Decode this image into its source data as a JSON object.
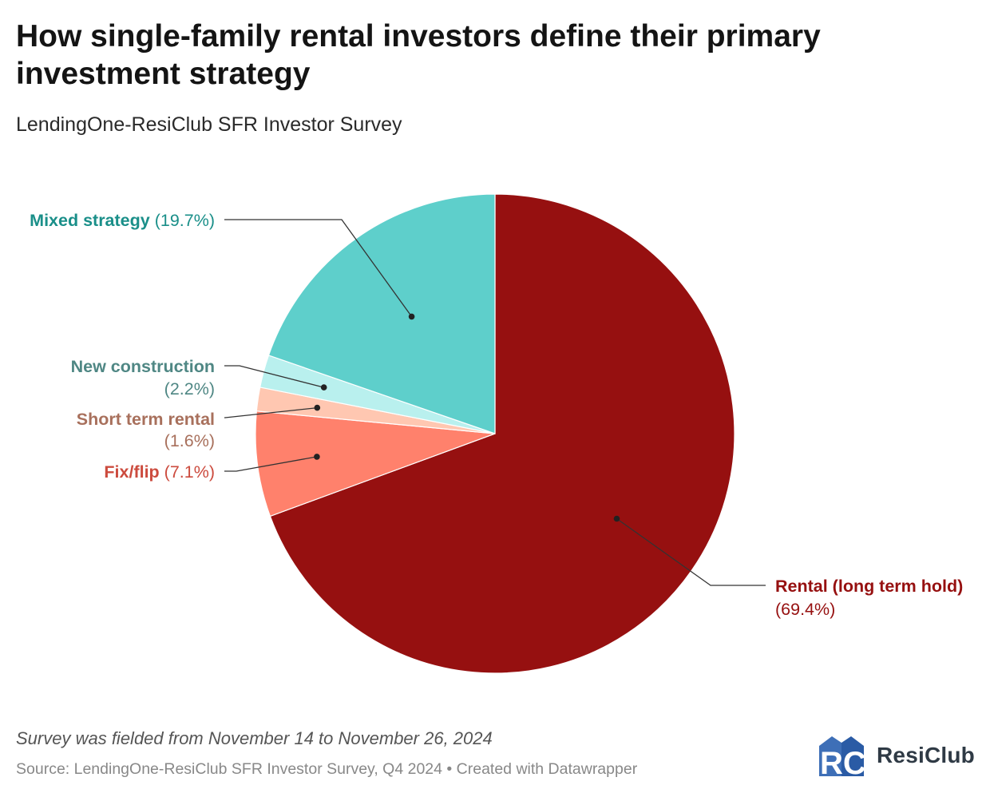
{
  "title": "How single-family rental investors define their primary investment strategy",
  "subtitle": "LendingOne-ResiClub SFR Investor Survey",
  "note": "Survey was fielded from November 14 to November 26, 2024",
  "source": "Source: LendingOne-ResiClub SFR Investor Survey, Q4 2024 • Created with Datawrapper",
  "logo": {
    "text": "ResiClub",
    "mark": "RC"
  },
  "chart_data": {
    "type": "pie",
    "title": "How single-family rental investors define their primary investment strategy",
    "subtitle": "LendingOne-ResiClub SFR Investor Survey",
    "unit": "%",
    "slices": [
      {
        "label": "Rental (long term hold)",
        "value": 69.4,
        "value_label": "(69.4%)",
        "color": "#961010",
        "label_color": "#961010"
      },
      {
        "label": "Fix/flip",
        "value": 7.1,
        "value_label": "(7.1%)",
        "color": "#ff816c",
        "label_color": "#cc4b3e"
      },
      {
        "label": "Short term rental",
        "value": 1.6,
        "value_label": "(1.6%)",
        "color": "#ffc7b1",
        "label_color": "#a8705c"
      },
      {
        "label": "New construction",
        "value": 2.2,
        "value_label": "(2.2%)",
        "color": "#b9f0ee",
        "label_color": "#4f8784"
      },
      {
        "label": "Mixed strategy",
        "value": 19.7,
        "value_label": "(19.7%)",
        "color": "#5ecfcb",
        "label_color": "#1a8f89"
      }
    ]
  }
}
